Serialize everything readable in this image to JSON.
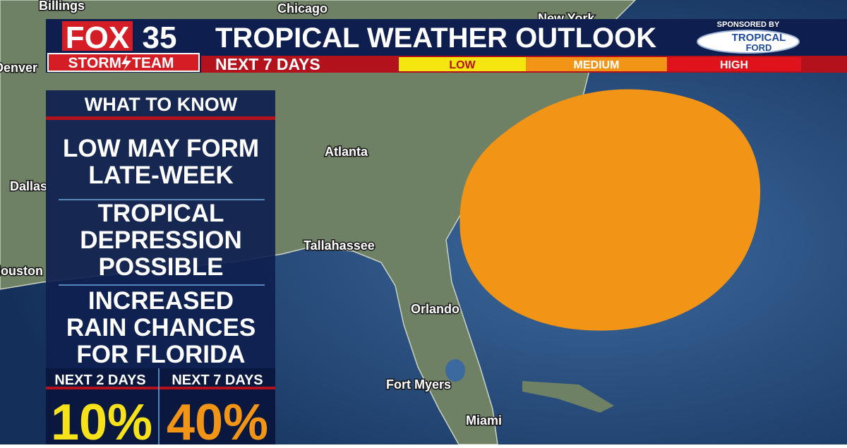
{
  "header": {
    "logo": {
      "brand": "FOX",
      "channel": "35",
      "team_left": "STORM",
      "team_right": "TEAM"
    },
    "title": "TROPICAL WEATHER OUTLOOK",
    "subtitle": "NEXT 7 DAYS",
    "sponsor": {
      "label": "SPONSORED BY",
      "name_top": "TROPICAL",
      "name_bottom": "FORD"
    }
  },
  "legend": [
    "LOW",
    "MEDIUM",
    "HIGH"
  ],
  "panel": {
    "title": "WHAT TO KNOW",
    "items": [
      [
        "LOW MAY FORM",
        "LATE-WEEK"
      ],
      [
        "TROPICAL",
        "DEPRESSION",
        "POSSIBLE"
      ],
      [
        "INCREASED",
        "RAIN CHANCES",
        "FOR FLORIDA"
      ]
    ],
    "odds": [
      {
        "label": "NEXT 2 DAYS",
        "value": "10%"
      },
      {
        "label": "NEXT 7 DAYS",
        "value": "40%"
      }
    ]
  },
  "map": {
    "cities": [
      "Billings",
      "Chicago",
      "New York",
      "Denver",
      "Dallas",
      "Atlanta",
      "Tallahassee",
      "Houston",
      "Orlando",
      "Fort Myers",
      "Miami"
    ]
  }
}
